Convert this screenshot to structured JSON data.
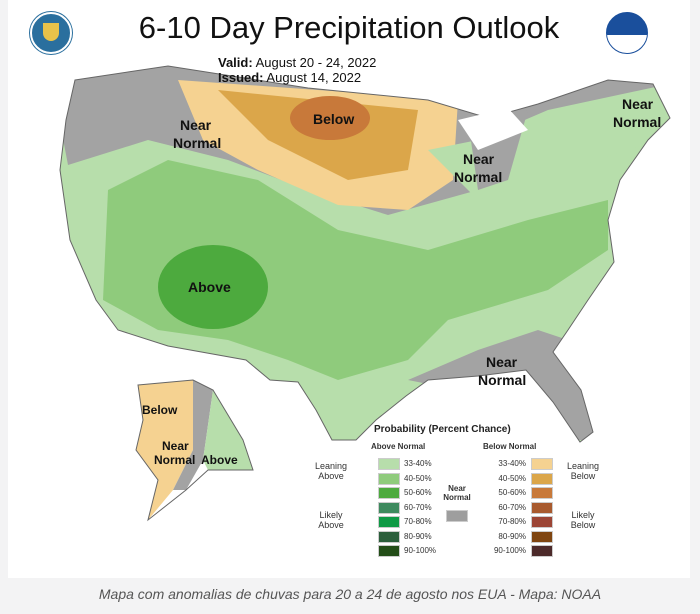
{
  "title": "6-10 Day Precipitation Outlook",
  "valid_label": "Valid:",
  "valid": "August 20 - 24, 2022",
  "issued_label": "Issued:",
  "issued": "August 14, 2022",
  "map_labels": {
    "below": "Below",
    "near_nw": "Near Normal",
    "near_ne": "Near Normal",
    "near_lakes": "Near Normal",
    "near_se": "Near Normal",
    "above": "Above",
    "ak_below": "Below",
    "ak_near": "Near Normal",
    "ak_above": "Above"
  },
  "legend": {
    "title": "Probability (Percent Chance)",
    "above_header": "Above Normal",
    "below_header": "Below Normal",
    "leaning_above": "Leaning Above",
    "likely_above": "Likely Above",
    "leaning_below": "Leaning Below",
    "likely_below": "Likely Below",
    "near_normal": "Near Normal",
    "near_color": "#9e9e9e",
    "ranges": [
      "33-40%",
      "40-50%",
      "50-60%",
      "60-70%",
      "70-80%",
      "80-90%",
      "90-100%"
    ],
    "above_colors": [
      "#b7deab",
      "#8fcb7c",
      "#4daa3e",
      "#3e8a5e",
      "#0f9a45",
      "#2b5e3b",
      "#234d18"
    ],
    "below_colors": [
      "#f5d291",
      "#dba64a",
      "#c8793a",
      "#a85a2e",
      "#9c4535",
      "#7f4510",
      "#4c2a2a"
    ]
  },
  "caption": "Mapa com anomalias de chuvas para 20 a 24 de agosto nos EUA - Mapa: NOAA"
}
